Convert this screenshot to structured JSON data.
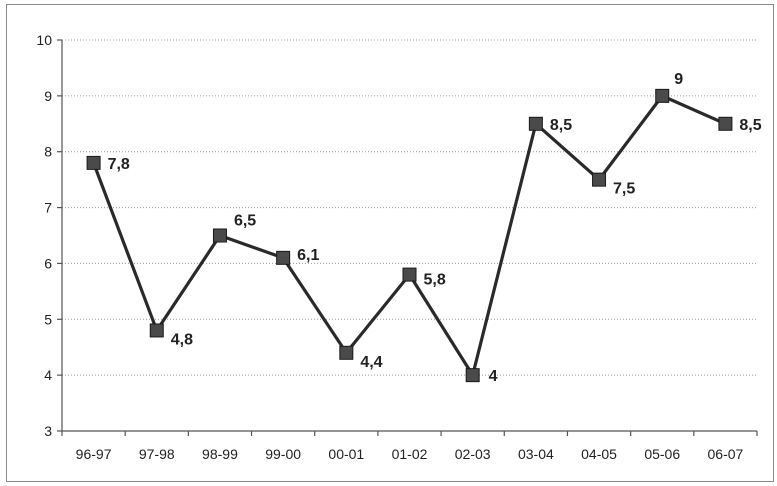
{
  "chart_data": {
    "type": "line",
    "categories": [
      "96-97",
      "97-98",
      "98-99",
      "99-00",
      "00-01",
      "01-02",
      "02-03",
      "03-04",
      "04-05",
      "05-06",
      "06-07"
    ],
    "series": [
      {
        "values": [
          7.8,
          4.8,
          6.5,
          6.1,
          4.4,
          5.8,
          4,
          8.5,
          7.5,
          9,
          8.5
        ],
        "labels": [
          "7,8",
          "4,8",
          "6,5",
          "6,1",
          "4,4",
          "5,8",
          "4",
          "8,5",
          "7,5",
          "9",
          "8,5"
        ],
        "color": "#2a2a2a",
        "marker": "square"
      }
    ],
    "yticks": [
      "3",
      "4",
      "5",
      "6",
      "7",
      "8",
      "9",
      "10"
    ],
    "ylim": [
      3,
      10
    ],
    "grid": true,
    "title": "",
    "xlabel": "",
    "ylabel": ""
  }
}
